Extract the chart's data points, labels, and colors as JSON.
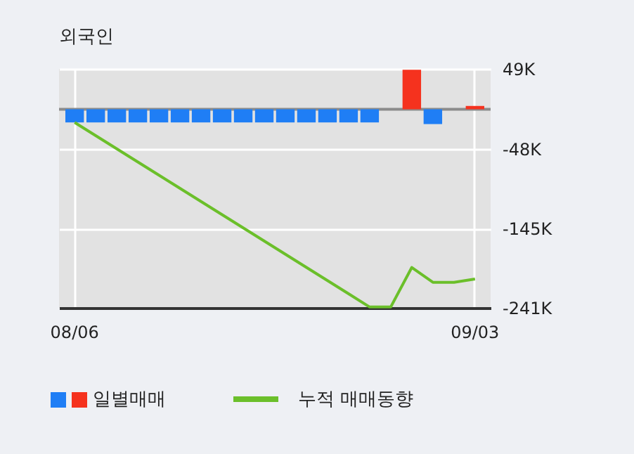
{
  "chart_data": {
    "type": "bar",
    "title": "외국인",
    "categories": [
      "08/06",
      null,
      null,
      null,
      null,
      null,
      null,
      null,
      null,
      null,
      null,
      null,
      null,
      null,
      null,
      null,
      null,
      null,
      null,
      "09/03"
    ],
    "series": [
      {
        "name": "일별매매",
        "colors": [
          "#1f7ef5",
          "#1f7ef5",
          "#1f7ef5",
          "#1f7ef5",
          "#1f7ef5",
          "#1f7ef5",
          "#1f7ef5",
          "#1f7ef5",
          "#1f7ef5",
          "#1f7ef5",
          "#1f7ef5",
          "#1f7ef5",
          "#1f7ef5",
          "#1f7ef5",
          "#1f7ef5",
          "#1f7ef5",
          "#f5321e",
          "#1f7ef5",
          "#1f7ef5",
          "#f5321e"
        ],
        "values": [
          -16,
          -16,
          -16,
          -16,
          -16,
          -16,
          -16,
          -16,
          -16,
          -16,
          -16,
          -16,
          -16,
          -16,
          -16,
          0,
          48,
          -18,
          0,
          4
        ]
      },
      {
        "name": "누적 매매동향",
        "type": "line",
        "color": "#6bbf2a",
        "values": [
          -16,
          -32,
          -48,
          -64,
          -80,
          -96,
          -112,
          -128,
          -144,
          -160,
          -176,
          -192,
          -208,
          -224,
          -240,
          -240,
          -192,
          -210,
          -210,
          -206
        ]
      }
    ],
    "ylim": [
      -241,
      49
    ],
    "yticks": [
      {
        "value": 49,
        "label": "49K"
      },
      {
        "value": -48,
        "label": "-48K"
      },
      {
        "value": -145,
        "label": "-145K"
      },
      {
        "value": -241,
        "label": "-241K"
      }
    ],
    "ref_lines": [
      {
        "axis": "y",
        "value": 0,
        "color": "#8c8c8c"
      }
    ],
    "grid": true,
    "legend": "bottom"
  }
}
